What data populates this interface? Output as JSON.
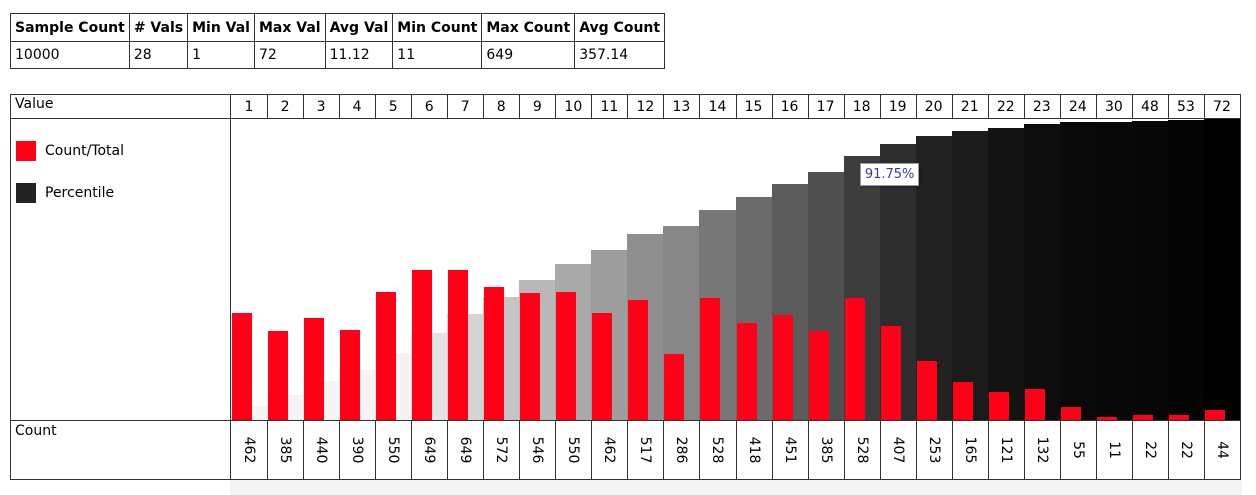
{
  "stats": {
    "headers": [
      "Sample Count",
      "# Vals",
      "Min Val",
      "Max Val",
      "Avg Val",
      "Min Count",
      "Max Count",
      "Avg Count"
    ],
    "values": [
      "10000",
      "28",
      "1",
      "72",
      "11.12",
      "11",
      "649",
      "357.14"
    ]
  },
  "chart_data": {
    "type": "bar",
    "title": "",
    "xlabel": "Value",
    "ylabel": "Count",
    "categories": [
      "1",
      "2",
      "3",
      "4",
      "5",
      "6",
      "7",
      "8",
      "9",
      "10",
      "11",
      "12",
      "13",
      "14",
      "15",
      "16",
      "17",
      "18",
      "19",
      "20",
      "21",
      "22",
      "23",
      "24",
      "30",
      "48",
      "53",
      "72"
    ],
    "series": [
      {
        "name": "Count/Total",
        "color": "#ff0018",
        "values": [
          462,
          385,
          440,
          390,
          550,
          649,
          649,
          572,
          546,
          550,
          462,
          517,
          286,
          528,
          418,
          451,
          385,
          528,
          407,
          253,
          165,
          121,
          132,
          55,
          11,
          22,
          22,
          44
        ]
      },
      {
        "name": "Percentile",
        "color": "#000000",
        "values": [
          4.62,
          8.47,
          12.87,
          16.77,
          22.27,
          28.76,
          35.25,
          40.97,
          46.43,
          51.93,
          56.55,
          61.72,
          64.58,
          69.86,
          74.04,
          78.55,
          82.4,
          87.68,
          91.75,
          94.28,
          95.93,
          97.14,
          98.46,
          99.01,
          99.12,
          99.34,
          99.56,
          100.0
        ]
      }
    ],
    "legend": [
      "Count/Total",
      "Percentile"
    ],
    "tooltip": {
      "category": "19",
      "text": "91.75%"
    }
  },
  "labels": {
    "value_row": "Value",
    "count_row": "Count"
  }
}
